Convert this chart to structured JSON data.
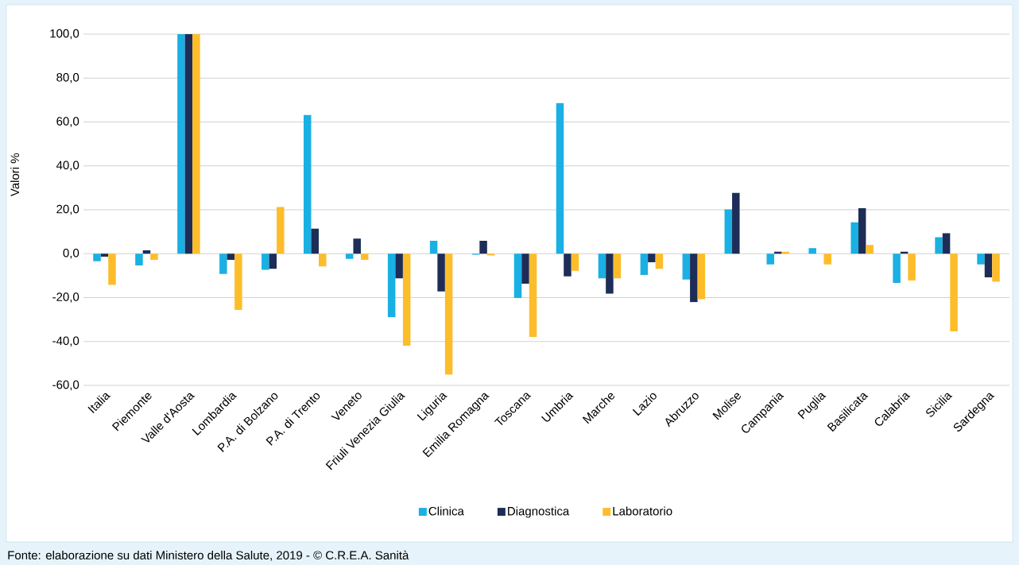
{
  "chart_data": {
    "type": "bar",
    "ylabel": "Valori %",
    "categories": [
      "Italia",
      "Piemonte",
      "Valle d'Aosta",
      "Lombardia",
      "P.A. di Bolzano",
      "P.A. di Trento",
      "Veneto",
      "Friuli Venezia Giulia",
      "Liguria",
      "Emilia Romagna",
      "Toscana",
      "Umbria",
      "Marche",
      "Lazio",
      "Abruzzo",
      "Molise",
      "Campania",
      "Puglia",
      "Basilicata",
      "Calabria",
      "Sicilia",
      "Sardegna"
    ],
    "series": [
      {
        "name": "Clinica",
        "color": "#1ab0e3",
        "values": [
          -3.4,
          -5.3,
          100,
          -9.2,
          -7.3,
          63.2,
          -2.4,
          -29.0,
          5.9,
          -0.5,
          -20.2,
          68.6,
          -11.2,
          -9.7,
          -11.8,
          20.2,
          -4.9,
          2.5,
          14.3,
          -13.3,
          7.5,
          -4.9
        ]
      },
      {
        "name": "Diagnostica",
        "color": "#1d2d57",
        "values": [
          -1.4,
          1.5,
          100,
          -2.8,
          -6.9,
          11.4,
          6.9,
          -11.2,
          -17.2,
          5.9,
          -13.7,
          -10.3,
          -18.2,
          -3.9,
          -22.1,
          27.7,
          0.9,
          0,
          20.7,
          0.9,
          9.3,
          -10.8
        ]
      },
      {
        "name": "Laboratorio",
        "color": "#fdbd2a",
        "values": [
          -14.2,
          -2.8,
          100,
          -25.6,
          21.3,
          -5.8,
          -2.8,
          -41.9,
          -55.1,
          -0.8,
          -37.9,
          -7.8,
          -11.2,
          -6.9,
          -20.7,
          0,
          0.9,
          -4.9,
          4.0,
          -12.2,
          -35.4,
          -12.8
        ]
      }
    ],
    "ylim": [
      -60,
      100
    ],
    "yticks": [
      {
        "value": -60,
        "label": "-60,0"
      },
      {
        "value": -40,
        "label": "-40,0"
      },
      {
        "value": -20,
        "label": "-20,0"
      },
      {
        "value": 0,
        "label": "0,0"
      },
      {
        "value": 20,
        "label": "20,0"
      },
      {
        "value": 40,
        "label": "40,0"
      },
      {
        "value": 60,
        "label": "60,0"
      },
      {
        "value": 80,
        "label": "80,0"
      },
      {
        "value": 100,
        "label": "100,0"
      }
    ],
    "grid": "y",
    "legend": "bottom",
    "annotations": [
      "Fonte: elaborazione su dati Ministero della Salute, 2019  - © C.R.E.A. Sanità"
    ]
  }
}
